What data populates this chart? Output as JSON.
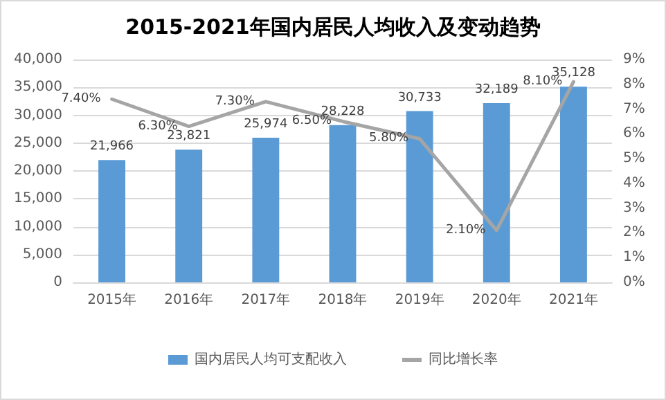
{
  "chart_data": {
    "type": "bar",
    "title": "2015-2021年国内居民人均收入及变动趋势",
    "categories": [
      "2015年",
      "2016年",
      "2017年",
      "2018年",
      "2019年",
      "2020年",
      "2021年"
    ],
    "series": [
      {
        "name": "国内居民人均可支配收入",
        "color": "#5b9bd5",
        "values": [
          21966,
          23821,
          25974,
          28228,
          30733,
          32189,
          35128
        ],
        "value_labels": [
          "21,966",
          "23,821",
          "25,974",
          "28,228",
          "30,733",
          "32,189",
          "35,128"
        ]
      },
      {
        "name": "同比增长率",
        "type": "line",
        "axis": "y2",
        "color": "#a5a5a5",
        "values": [
          7.4,
          6.3,
          7.3,
          6.5,
          5.8,
          2.1,
          8.1
        ],
        "value_labels": [
          "7.40%",
          "6.30%",
          "7.30%",
          "6.50%",
          "5.80%",
          "2.10%",
          "8.10%"
        ]
      }
    ],
    "ylim": [
      0,
      40000
    ],
    "yticks": [
      {
        "value": 0,
        "label": "0"
      },
      {
        "value": 5000,
        "label": "5,000"
      },
      {
        "value": 10000,
        "label": "10,000"
      },
      {
        "value": 15000,
        "label": "15,000"
      },
      {
        "value": 20000,
        "label": "20,000"
      },
      {
        "value": 25000,
        "label": "25,000"
      },
      {
        "value": 30000,
        "label": "30,000"
      },
      {
        "value": 35000,
        "label": "35,000"
      },
      {
        "value": 40000,
        "label": "40,000"
      }
    ],
    "y2lim": [
      0,
      9
    ],
    "y2ticks": [
      {
        "value": 0,
        "label": "0%"
      },
      {
        "value": 1,
        "label": "1%"
      },
      {
        "value": 2,
        "label": "2%"
      },
      {
        "value": 3,
        "label": "3%"
      },
      {
        "value": 4,
        "label": "4%"
      },
      {
        "value": 5,
        "label": "5%"
      },
      {
        "value": 6,
        "label": "6%"
      },
      {
        "value": 7,
        "label": "7%"
      },
      {
        "value": 8,
        "label": "8%"
      },
      {
        "value": 9,
        "label": "9%"
      }
    ],
    "grid": "y",
    "legend": "bottom",
    "marker": "none",
    "line_style": "solid"
  }
}
